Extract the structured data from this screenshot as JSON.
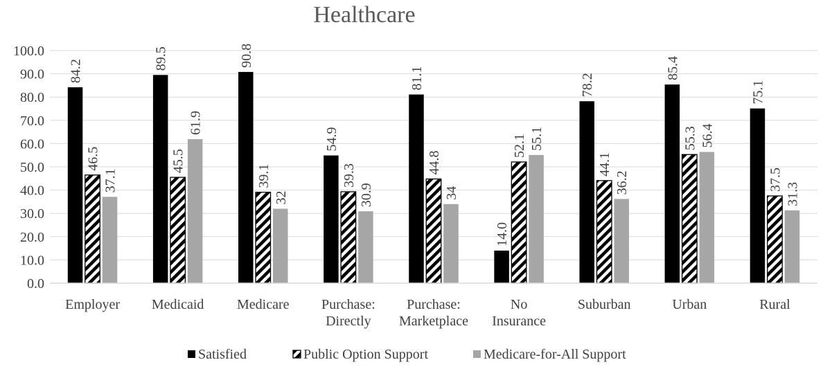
{
  "chart_data": {
    "type": "bar",
    "title": "Healthcare",
    "categories": [
      [
        "Employer"
      ],
      [
        "Medicaid"
      ],
      [
        "Medicare"
      ],
      [
        "Purchase:",
        "Directly"
      ],
      [
        "Purchase:",
        "Marketplace"
      ],
      [
        "No",
        "Insurance"
      ],
      [
        "Suburban"
      ],
      [
        "Urban"
      ],
      [
        "Rural"
      ]
    ],
    "series": [
      {
        "name": "Satisfied",
        "values": [
          84.2,
          89.5,
          90.8,
          54.9,
          81.1,
          14.0,
          78.2,
          85.4,
          75.1
        ],
        "labels": [
          "84.2",
          "89.5",
          "90.8",
          "54.9",
          "81.1",
          "14.0",
          "78.2",
          "85.4",
          "75.1"
        ],
        "color": "#000000",
        "pattern": "solid"
      },
      {
        "name": "Public Option Support",
        "values": [
          46.5,
          45.5,
          39.1,
          39.3,
          44.8,
          52.1,
          44.1,
          55.3,
          37.5
        ],
        "labels": [
          "46.5",
          "45.5",
          "39.1",
          "39.3",
          "44.8",
          "52.1",
          "44.1",
          "55.3",
          "37.5"
        ],
        "color": "#000000",
        "pattern": "diagonal-stripes"
      },
      {
        "name": "Medicare-for-All Support",
        "values": [
          37.1,
          61.9,
          32,
          30.9,
          34,
          55.1,
          36.2,
          56.4,
          31.3
        ],
        "labels": [
          "37.1",
          "61.9",
          "32",
          "30.9",
          "34",
          "55.1",
          "36.2",
          "56.4",
          "31.3"
        ],
        "color": "#a6a6a6",
        "pattern": "solid"
      }
    ],
    "ylim": [
      0,
      100
    ],
    "yticks": [
      "0.0",
      "10.0",
      "20.0",
      "30.0",
      "40.0",
      "50.0",
      "60.0",
      "70.0",
      "80.0",
      "90.0",
      "100.0"
    ],
    "grid": true,
    "legend_position": "bottom",
    "xlabel": "",
    "ylabel": ""
  }
}
